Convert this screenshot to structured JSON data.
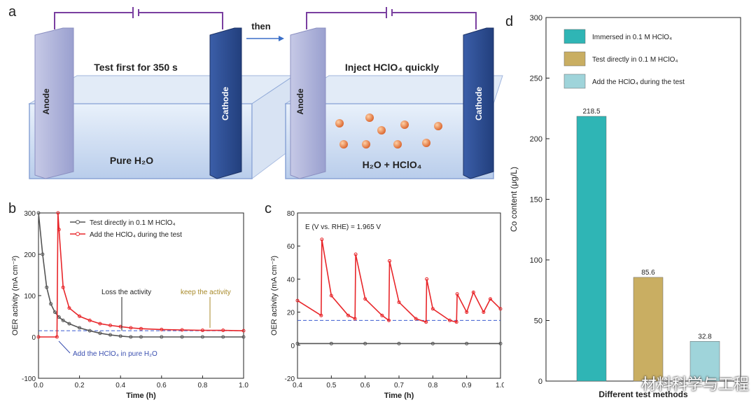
{
  "panels": {
    "a": "a",
    "b": "b",
    "c": "c",
    "d": "d"
  },
  "schematic": {
    "then_label": "then",
    "left": {
      "anode": "Anode",
      "cathode": "Cathode",
      "caption": "Test first for 350 s",
      "liquid": "Pure H₂O"
    },
    "right": {
      "anode": "Anode",
      "cathode": "Cathode",
      "caption": "Inject HClO₄ quickly",
      "liquid": "H₂O + HClO₄"
    }
  },
  "colors": {
    "grey_series": "#555555",
    "red_series": "#e8262a",
    "baseline": "#3a5bd0",
    "bar1": "#2fb5b5",
    "bar2": "#c9ae62",
    "bar3": "#9fd4da",
    "wire": "#7a3fa0"
  },
  "chart_data": [
    {
      "type": "line",
      "panel": "b",
      "xlabel": "Time (h)",
      "ylabel": "OER activity (mA cm⁻²)",
      "xlim": [
        0.0,
        1.0
      ],
      "ylim": [
        -100,
        300
      ],
      "xticks": [
        "0.0",
        "0.2",
        "0.4",
        "0.6",
        "0.8",
        "1.0"
      ],
      "yticks": [
        "-100",
        "0",
        "100",
        "200",
        "300"
      ],
      "series": [
        {
          "name": "Test directly in 0.1 M HClO₄",
          "x": [
            0.0,
            0.02,
            0.04,
            0.06,
            0.08,
            0.1,
            0.12,
            0.15,
            0.2,
            0.25,
            0.3,
            0.35,
            0.4,
            0.45,
            0.5,
            0.6,
            0.7,
            0.8,
            0.9,
            1.0
          ],
          "values": [
            300,
            200,
            120,
            80,
            60,
            48,
            40,
            32,
            22,
            15,
            9,
            5,
            2,
            0,
            0,
            0,
            0,
            0,
            0,
            0
          ]
        },
        {
          "name": "Add the HClO₄ during the test",
          "x": [
            0.0,
            0.09,
            0.095,
            0.1,
            0.12,
            0.15,
            0.2,
            0.25,
            0.3,
            0.35,
            0.4,
            0.45,
            0.5,
            0.6,
            0.7,
            0.8,
            0.9,
            1.0
          ],
          "values": [
            0,
            0,
            300,
            260,
            120,
            70,
            50,
            40,
            32,
            28,
            25,
            22,
            20,
            18,
            17,
            16,
            16,
            15
          ]
        }
      ],
      "baseline": 15,
      "annotations": [
        "Loss the activity",
        "keep the activity",
        "Add the HClO₄ in pure H₂O"
      ]
    },
    {
      "type": "line",
      "panel": "c",
      "xlabel": "Time (h)",
      "ylabel": "OER activity (mA cm⁻²)",
      "xlim": [
        0.4,
        1.0
      ],
      "ylim": [
        -20,
        80
      ],
      "xticks": [
        "0.4",
        "0.5",
        "0.6",
        "0.7",
        "0.8",
        "0.9",
        "1.0"
      ],
      "yticks": [
        "-20",
        "0",
        "20",
        "40",
        "60",
        "80"
      ],
      "series": [
        {
          "name": "Test directly in 0.1 M HClO₄",
          "x": [
            0.4,
            0.5,
            0.6,
            0.7,
            0.8,
            0.9,
            1.0
          ],
          "values": [
            1,
            1,
            1,
            1,
            1,
            1,
            1
          ]
        },
        {
          "name": "Add the HClO₄ during the test",
          "x": [
            0.4,
            0.47,
            0.472,
            0.5,
            0.55,
            0.57,
            0.572,
            0.6,
            0.65,
            0.67,
            0.672,
            0.7,
            0.75,
            0.78,
            0.782,
            0.8,
            0.85,
            0.87,
            0.872,
            0.9,
            0.92,
            0.95,
            0.97,
            1.0
          ],
          "values": [
            27,
            18,
            64,
            30,
            18,
            16,
            55,
            28,
            18,
            15,
            51,
            26,
            16,
            14,
            40,
            22,
            15,
            14,
            31,
            20,
            32,
            20,
            28,
            22
          ]
        }
      ],
      "baseline": 15,
      "annotations": [
        "E (V vs. RHE) = 1.965 V"
      ]
    },
    {
      "type": "bar",
      "panel": "d",
      "title": "",
      "xlabel": "Different test methods",
      "ylabel": "Co content  (μg/L)",
      "ylim": [
        0,
        300
      ],
      "yticks": [
        "0",
        "50",
        "100",
        "150",
        "200",
        "250",
        "300"
      ],
      "categories": [
        "Immersed in 0.1 M HClO₄",
        "Test directly in 0.1 M HClO₄",
        "Add the HClO₄ during the test"
      ],
      "values": [
        218.5,
        85.6,
        32.8
      ],
      "value_labels": [
        "218.5",
        "85.6",
        "32.8"
      ]
    }
  ],
  "watermark": "材料科学与工程"
}
